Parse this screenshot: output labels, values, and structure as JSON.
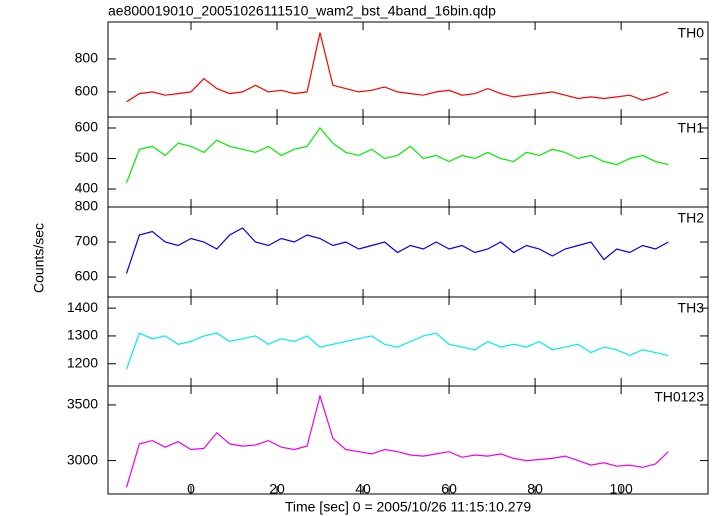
{
  "chart_data": {
    "type": "line",
    "title": "ae800019010_20051026111510_wam2_bst_4band_16bin.qdp",
    "x_label": "Time [sec] 0 = 2005/10/26 11:15:10.279",
    "y_label": "Counts/sec",
    "xlim": [
      -19.3,
      120.2
    ],
    "xticks": [
      0,
      20,
      40,
      60,
      80,
      100
    ],
    "x": [
      -15,
      -12,
      -9,
      -6,
      -3,
      0,
      3,
      6,
      9,
      12,
      15,
      18,
      21,
      24,
      27,
      30,
      33,
      36,
      39,
      42,
      45,
      48,
      51,
      54,
      57,
      60,
      63,
      66,
      69,
      72,
      75,
      78,
      81,
      84,
      87,
      90,
      93,
      96,
      99,
      102,
      105,
      108,
      111
    ],
    "panels": [
      {
        "name": "TH0",
        "color": "#ff0000",
        "ylim": [
          448,
          1024
        ],
        "yticks": [
          600,
          800
        ],
        "values": [
          540,
          590,
          600,
          580,
          590,
          600,
          680,
          620,
          590,
          600,
          640,
          600,
          610,
          590,
          600,
          960,
          640,
          620,
          600,
          610,
          630,
          600,
          590,
          580,
          600,
          610,
          580,
          590,
          620,
          590,
          570,
          580,
          590,
          600,
          580,
          560,
          570,
          560,
          570,
          580,
          550,
          570,
          600
        ]
      },
      {
        "name": "TH1",
        "color": "#00ee00",
        "ylim": [
          341,
          636
        ],
        "yticks": [
          400,
          500,
          600
        ],
        "values": [
          420,
          530,
          540,
          510,
          550,
          540,
          520,
          560,
          540,
          530,
          520,
          540,
          510,
          530,
          540,
          600,
          550,
          520,
          510,
          530,
          500,
          510,
          540,
          500,
          510,
          490,
          510,
          500,
          520,
          500,
          490,
          520,
          510,
          530,
          520,
          500,
          510,
          490,
          480,
          500,
          510,
          490,
          480
        ]
      },
      {
        "name": "TH2",
        "color": "#0000ee",
        "ylim": [
          543,
          800
        ],
        "yticks": [
          600,
          700,
          800
        ],
        "values": [
          610,
          720,
          730,
          700,
          690,
          710,
          700,
          680,
          720,
          740,
          700,
          690,
          710,
          700,
          720,
          710,
          690,
          700,
          680,
          690,
          700,
          670,
          690,
          680,
          700,
          680,
          690,
          670,
          680,
          700,
          670,
          690,
          680,
          660,
          680,
          690,
          700,
          650,
          680,
          670,
          690,
          680,
          700
        ]
      },
      {
        "name": "TH3",
        "color": "#00eeee",
        "ylim": [
          1120,
          1440
        ],
        "yticks": [
          1200,
          1300,
          1400
        ],
        "values": [
          1180,
          1310,
          1290,
          1300,
          1270,
          1280,
          1300,
          1310,
          1280,
          1290,
          1300,
          1270,
          1290,
          1280,
          1300,
          1260,
          1270,
          1280,
          1290,
          1300,
          1270,
          1260,
          1280,
          1300,
          1310,
          1270,
          1260,
          1250,
          1280,
          1260,
          1270,
          1260,
          1280,
          1250,
          1260,
          1270,
          1240,
          1260,
          1250,
          1230,
          1250,
          1240,
          1230
        ]
      },
      {
        "name": "TH0123",
        "color": "#ee00ee",
        "ylim": [
          2700,
          3670
        ],
        "yticks": [
          3000,
          3500
        ],
        "values": [
          2760,
          3150,
          3180,
          3120,
          3170,
          3100,
          3110,
          3250,
          3150,
          3130,
          3140,
          3180,
          3120,
          3100,
          3130,
          3580,
          3200,
          3100,
          3080,
          3060,
          3100,
          3080,
          3050,
          3040,
          3060,
          3080,
          3030,
          3050,
          3040,
          3060,
          3020,
          3000,
          3010,
          3020,
          3040,
          3000,
          2960,
          2980,
          2950,
          2960,
          2940,
          2970,
          3080
        ]
      }
    ]
  }
}
